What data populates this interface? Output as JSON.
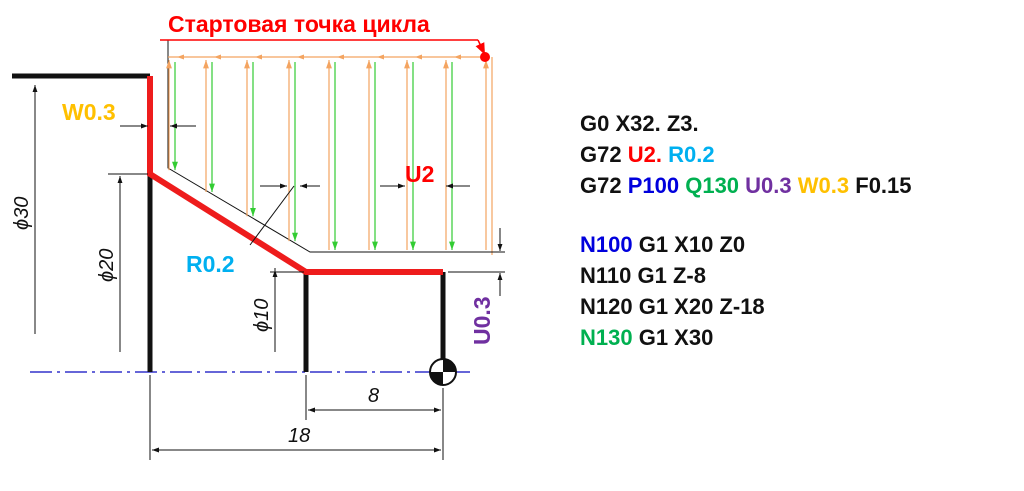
{
  "colors": {
    "black": "#111111",
    "red": "#ff0000",
    "profile_red": "#ee1c1c",
    "orange": "#ffc000",
    "arrow_orange": "#f4a460",
    "arrow_green": "#33cc33",
    "blue": "#0000dd",
    "light_blue": "#00b0f0",
    "green": "#00b050",
    "purple": "#7030a0",
    "axis_blue": "#3333cc"
  },
  "diagram": {
    "start_point_label": "Стартовая точка цикла",
    "w_label": "W0.3",
    "u2_label": "U2",
    "r_label": "R0.2",
    "u03_label": "U0.3",
    "dim_d30": "ϕ30",
    "dim_d20": "ϕ20",
    "dim_d10": "ϕ10",
    "dim_len8": "8",
    "dim_len18": "18"
  },
  "code": {
    "lines": [
      [
        {
          "t": "G0 X32. Z3.",
          "c": "black"
        }
      ],
      [
        {
          "t": "G72 ",
          "c": "black"
        },
        {
          "t": "U2.",
          "c": "red"
        },
        {
          "t": " ",
          "c": "black"
        },
        {
          "t": "R0.2",
          "c": "light_blue"
        }
      ],
      [
        {
          "t": "G72 ",
          "c": "black"
        },
        {
          "t": "P100",
          "c": "blue"
        },
        {
          "t": " ",
          "c": "black"
        },
        {
          "t": "Q130",
          "c": "green"
        },
        {
          "t": " ",
          "c": "black"
        },
        {
          "t": "U0.3",
          "c": "purple"
        },
        {
          "t": " ",
          "c": "black"
        },
        {
          "t": "W0.3",
          "c": "orange"
        },
        {
          "t": " F0.15",
          "c": "black"
        }
      ],
      [],
      [
        {
          "t": "N100",
          "c": "blue"
        },
        {
          "t": " G1 X10 Z0",
          "c": "black"
        }
      ],
      [
        {
          "t": "N110 G1 Z-8",
          "c": "black"
        }
      ],
      [
        {
          "t": "N120 G1 X20 Z-18",
          "c": "black"
        }
      ],
      [
        {
          "t": "N130",
          "c": "green"
        },
        {
          "t": " G1 X30",
          "c": "black"
        }
      ]
    ]
  }
}
